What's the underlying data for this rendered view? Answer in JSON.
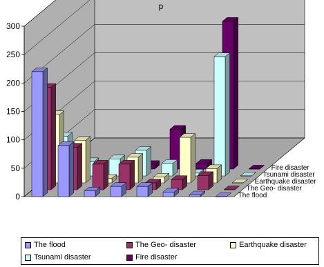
{
  "chart_data": {
    "type": "bar",
    "title": "p",
    "categories": [
      "",
      "",
      "",
      "",
      "",
      "",
      "",
      ""
    ],
    "yticks": [
      0,
      50,
      100,
      150,
      200,
      250,
      300
    ],
    "ylim": [
      0,
      300
    ],
    "grid": true,
    "legend_position": "bottom",
    "series": [
      {
        "name": "The flood",
        "color": "#9999ff",
        "values": [
          220,
          90,
          10,
          18,
          18,
          8,
          3,
          0
        ]
      },
      {
        "name": "The Geo- disaster",
        "color": "#993366",
        "values": [
          180,
          75,
          45,
          45,
          12,
          18,
          25,
          0
        ]
      },
      {
        "name": "Earthquake disaster",
        "color": "#ffffcc",
        "values": [
          120,
          75,
          8,
          45,
          10,
          80,
          25,
          0
        ]
      },
      {
        "name": "Tsunami disaster",
        "color": "#ccffff",
        "values": [
          70,
          25,
          30,
          45,
          22,
          5,
          210,
          0
        ]
      },
      {
        "name": "Fire disaster",
        "color": "#660066",
        "values": [
          0,
          5,
          0,
          8,
          70,
          10,
          260,
          0
        ]
      }
    ]
  }
}
